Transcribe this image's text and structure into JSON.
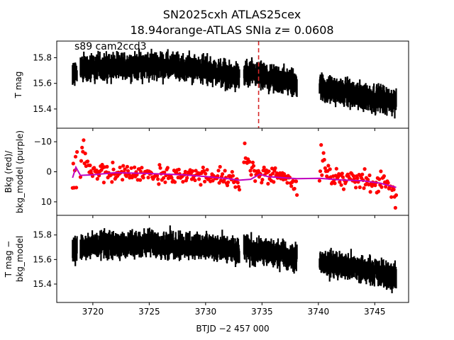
{
  "chart_data": {
    "type": "scatter",
    "title_line1": "SN2025cxh  ATLAS25cex",
    "title_line2": "18.94orange-ATLAS SNIa z= 0.0608",
    "annotation": "s89 cam2ccd3",
    "xlabel": "BTJD −2 457 000",
    "xlim": [
      3716.8,
      3748.0
    ],
    "xticks": [
      "3720",
      "3725",
      "3730",
      "3735",
      "3740",
      "3745"
    ],
    "xtick_values": [
      3720,
      3725,
      3730,
      3735,
      3740,
      3745
    ],
    "colors": {
      "flux": "#000000",
      "bkg": "#ff0000",
      "bkg_model": "#bf00bf",
      "marker_line": "#d62728"
    },
    "segments": [
      [
        3718.2,
        3718.6
      ],
      [
        3718.9,
        3733.0
      ],
      [
        3733.4,
        3738.1
      ],
      [
        3740.1,
        3746.9
      ]
    ],
    "marker_x": 3734.7,
    "panels": [
      {
        "ylabel": "T mag",
        "ylim": [
          15.93,
          15.25
        ],
        "yticks": [
          "15.4",
          "15.6",
          "15.8"
        ],
        "ytick_values": [
          15.4,
          15.6,
          15.8
        ],
        "trend": [
          [
            3718.2,
            15.66
          ],
          [
            3719.0,
            15.72
          ],
          [
            3725.0,
            15.74
          ],
          [
            3730.0,
            15.71
          ],
          [
            3733.0,
            15.64
          ],
          [
            3733.4,
            15.68
          ],
          [
            3738.1,
            15.6
          ],
          [
            3740.1,
            15.57
          ],
          [
            3744.0,
            15.5
          ],
          [
            3746.9,
            15.45
          ]
        ],
        "scatter": 0.09
      },
      {
        "ylabel": "Bkg (red)/ bkg_model (purple)",
        "ylabel_line1": "Bkg (red)/",
        "ylabel_line2": "bkg_model (purple)",
        "ylim": [
          -14.5,
          14.5
        ],
        "yticks": [
          "−10",
          "0",
          "10"
        ],
        "ytick_values": [
          -10,
          0,
          10
        ],
        "trend": [
          [
            3718.2,
            0.8
          ],
          [
            3720.0,
            0.6
          ],
          [
            3725.0,
            0.8
          ],
          [
            3730.0,
            1.3
          ],
          [
            3733.0,
            2.4
          ],
          [
            3733.4,
            -1.0
          ],
          [
            3735.0,
            0.8
          ],
          [
            3738.1,
            2.2
          ],
          [
            3740.1,
            1.8
          ],
          [
            3744.0,
            2.6
          ],
          [
            3746.9,
            5.0
          ]
        ],
        "model": [
          [
            3718.2,
            2.0
          ],
          [
            3718.5,
            -1.5
          ],
          [
            3718.9,
            1.2
          ],
          [
            3720.0,
            1.0
          ],
          [
            3722.0,
            0.3
          ],
          [
            3725.0,
            0.6
          ],
          [
            3728.0,
            1.0
          ],
          [
            3730.0,
            1.6
          ],
          [
            3732.0,
            2.3
          ],
          [
            3733.0,
            2.8
          ],
          [
            3734.0,
            2.5
          ],
          [
            3734.8,
            0.8
          ],
          [
            3735.5,
            1.6
          ],
          [
            3738.1,
            2.3
          ],
          [
            3740.1,
            2.2
          ],
          [
            3742.0,
            2.7
          ],
          [
            3744.0,
            3.0
          ],
          [
            3745.5,
            3.8
          ],
          [
            3746.9,
            5.2
          ]
        ],
        "scatter": 4.5
      },
      {
        "ylabel": "T mag − bkg_model",
        "ylabel_line1": "T mag −",
        "ylabel_line2": "bkg_model",
        "ylim": [
          15.96,
          15.25
        ],
        "yticks": [
          "15.4",
          "15.6",
          "15.8"
        ],
        "ytick_values": [
          15.4,
          15.6,
          15.8
        ],
        "trend": [
          [
            3718.2,
            15.68
          ],
          [
            3719.0,
            15.71
          ],
          [
            3725.0,
            15.73
          ],
          [
            3730.0,
            15.71
          ],
          [
            3733.0,
            15.66
          ],
          [
            3733.4,
            15.69
          ],
          [
            3738.1,
            15.62
          ],
          [
            3740.1,
            15.58
          ],
          [
            3744.0,
            15.52
          ],
          [
            3746.9,
            15.46
          ]
        ],
        "scatter": 0.09
      }
    ]
  }
}
